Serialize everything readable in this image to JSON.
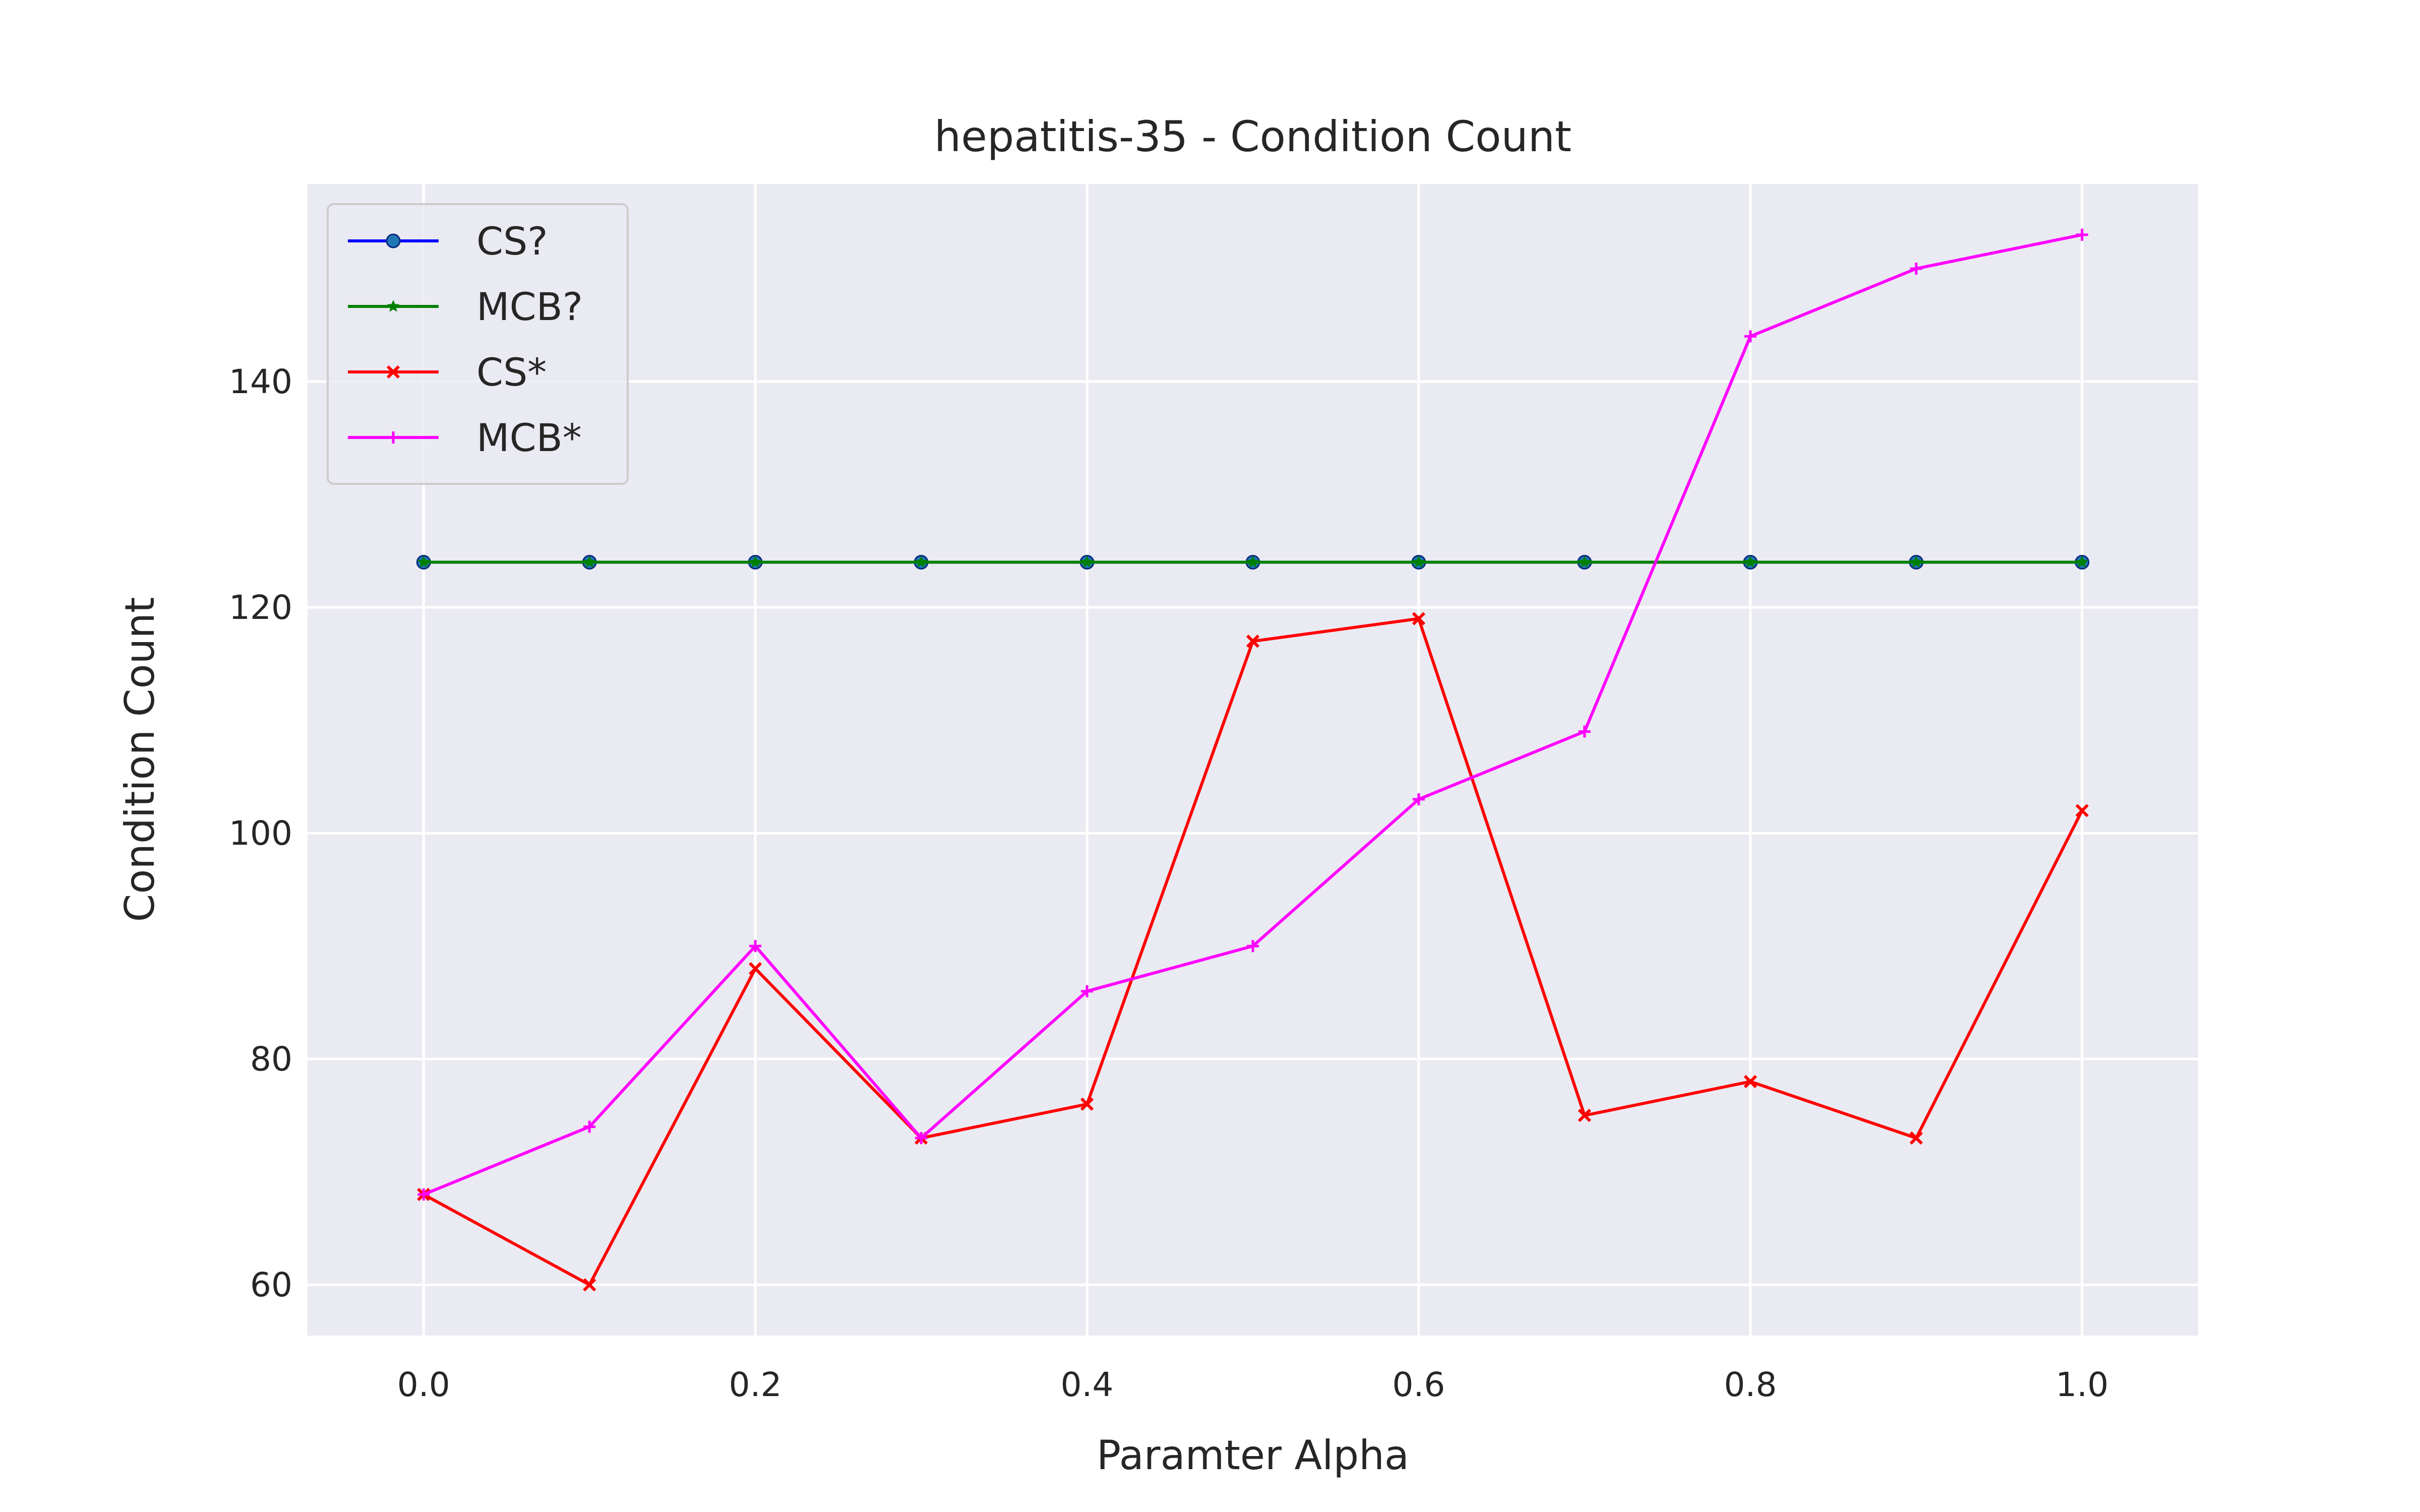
{
  "chart_data": {
    "type": "line",
    "title": "hepatitis-35 - Condition Count",
    "xlabel": "Paramter Alpha",
    "ylabel": "Condition Count",
    "x": [
      0.0,
      0.1,
      0.2,
      0.3,
      0.4,
      0.5,
      0.6,
      0.7,
      0.8,
      0.9,
      1.0
    ],
    "xlim": [
      -0.07,
      1.07
    ],
    "ylim": [
      55.5,
      157.5
    ],
    "x_ticks": [
      0.0,
      0.2,
      0.4,
      0.6,
      0.8,
      1.0
    ],
    "x_tick_labels": [
      "0.0",
      "0.2",
      "0.4",
      "0.6",
      "0.8",
      "1.0"
    ],
    "y_ticks": [
      60,
      80,
      100,
      120,
      140
    ],
    "y_tick_labels": [
      "60",
      "80",
      "100",
      "120",
      "140"
    ],
    "grid": true,
    "background": "#eaeaf2",
    "grid_color": "#ffffff",
    "legend_position": "upper-left",
    "series": [
      {
        "name": "CS?",
        "color": "#0000ff",
        "marker": "circle",
        "values": [
          124,
          124,
          124,
          124,
          124,
          124,
          124,
          124,
          124,
          124,
          124
        ]
      },
      {
        "name": "MCB?",
        "color": "#008000",
        "marker": "star",
        "values": [
          124,
          124,
          124,
          124,
          124,
          124,
          124,
          124,
          124,
          124,
          124
        ]
      },
      {
        "name": "CS*",
        "color": "#ff0000",
        "marker": "x",
        "values": [
          68,
          60,
          88,
          73,
          76,
          117,
          119,
          75,
          78,
          73,
          102
        ]
      },
      {
        "name": "MCB*",
        "color": "#ff00ff",
        "marker": "plus",
        "values": [
          68,
          74,
          90,
          73,
          86,
          90,
          103,
          109,
          144,
          150,
          153
        ]
      }
    ]
  }
}
